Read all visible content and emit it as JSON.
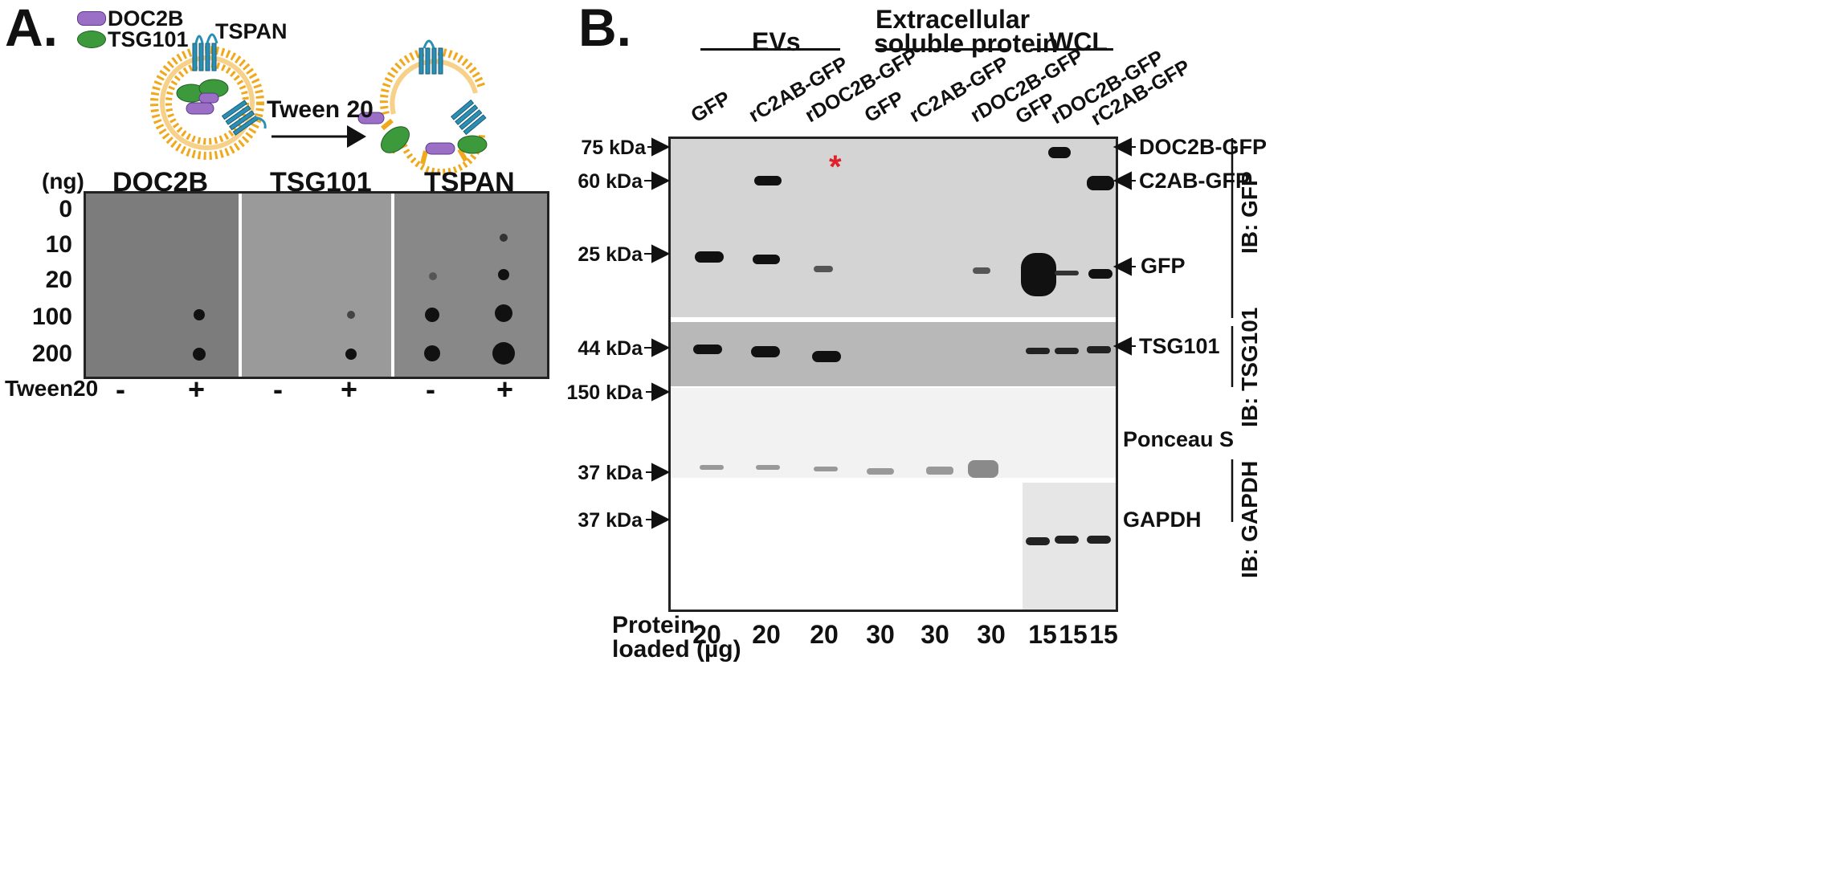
{
  "panel_a": {
    "letter": "A.",
    "legend": [
      {
        "label": "DOC2B",
        "color": "#9b6fc6"
      },
      {
        "label": "TSG101",
        "color": "#3c9a3c"
      }
    ],
    "tspan_label": "TSPAN",
    "arrow_label": "Tween 20",
    "ng_label": "(ng)",
    "column_headers": [
      "DOC2B",
      "TSG101",
      "TSPAN"
    ],
    "ng_values": [
      "0",
      "10",
      "20",
      "100",
      "200"
    ],
    "tween_label": "Tween20",
    "tween_signs": [
      "-",
      "+",
      "-",
      "+",
      "-",
      "+"
    ]
  },
  "panel_b": {
    "letter": "B.",
    "groups": [
      {
        "label": "EVs"
      },
      {
        "label": "Extracellular\nsoluble protein"
      },
      {
        "label": "WCL"
      }
    ],
    "group_line1": "Extracellular",
    "group_line2": "soluble protein",
    "lanes": [
      "GFP",
      "rC2AB-GFP",
      "rDOC2B-GFP",
      "GFP",
      "rC2AB-GFP",
      "rDOC2B-GFP",
      "GFP",
      "rDOC2B-GFP",
      "rC2AB-GFP"
    ],
    "markers": [
      "75 kDa",
      "60 kDa",
      "25 kDa",
      "44 kDa",
      "150 kDa",
      "37 kDa",
      "37 kDa"
    ],
    "right_labels": [
      "DOC2B-GFP",
      "C2AB-GFP",
      "GFP",
      "TSG101",
      "Ponceau S",
      "GAPDH"
    ],
    "asterisk": "*",
    "ib_labels": [
      "IB: GFP",
      "IB: TSG101",
      "IB: GAPDH"
    ],
    "protein_label_line1": "Protein",
    "protein_label_line2": "loaded (µg)",
    "protein_loaded": [
      "20",
      "20",
      "20",
      "30",
      "30",
      "30",
      "15",
      "15",
      "15"
    ]
  }
}
